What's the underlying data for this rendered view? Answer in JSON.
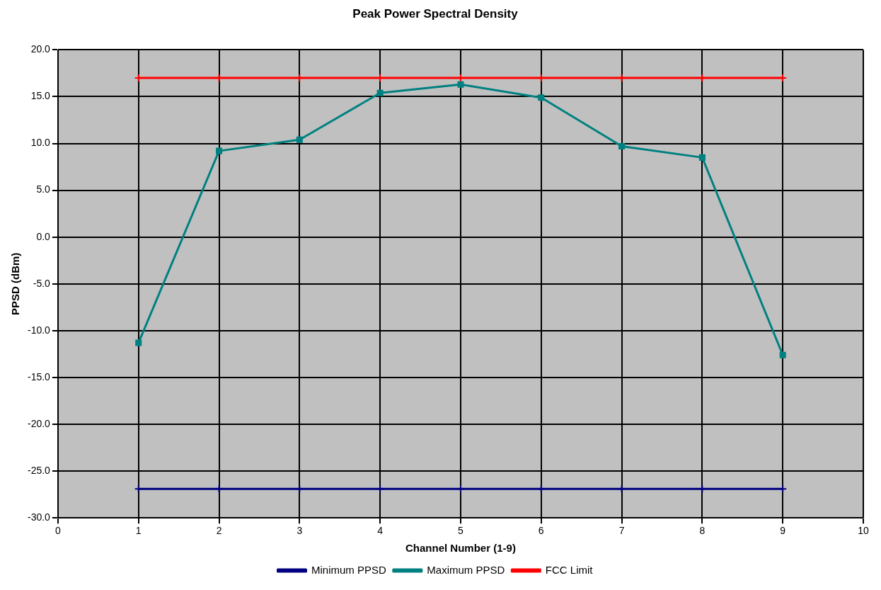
{
  "chart_data": {
    "type": "line",
    "title": "Peak Power Spectral Density",
    "xlabel": "Channel Number (1-9)",
    "ylabel": "PPSD (dBm)",
    "x": [
      1,
      2,
      3,
      4,
      5,
      6,
      7,
      8,
      9
    ],
    "series": [
      {
        "name": "Minimum PPSD",
        "color": "#000080",
        "marker": "cross",
        "values": [
          -26.9,
          -26.9,
          -26.9,
          -26.9,
          -26.9,
          -26.9,
          -26.9,
          -26.9,
          -26.9
        ]
      },
      {
        "name": "Maximum PPSD",
        "color": "#008080",
        "marker": "square",
        "values": [
          -11.3,
          9.2,
          10.4,
          15.4,
          16.3,
          14.9,
          9.7,
          8.5,
          -12.6
        ]
      },
      {
        "name": "FCC Limit",
        "color": "#ff0000",
        "marker": "cross",
        "values": [
          17.0,
          17.0,
          17.0,
          17.0,
          17.0,
          17.0,
          17.0,
          17.0,
          17.0
        ]
      }
    ],
    "xlim": [
      0,
      10
    ],
    "xticks": [
      0,
      1,
      2,
      3,
      4,
      5,
      6,
      7,
      8,
      9,
      10
    ],
    "ylim": [
      -30,
      20
    ],
    "yticks": [
      {
        "value": -30,
        "label": "-30.0"
      },
      {
        "value": -25,
        "label": "-25.0"
      },
      {
        "value": -20,
        "label": "-20.0"
      },
      {
        "value": -15,
        "label": "-15.0"
      },
      {
        "value": -10,
        "label": "-10.0"
      },
      {
        "value": -5,
        "label": "-5.0"
      },
      {
        "value": 0,
        "label": "0.0"
      },
      {
        "value": 5,
        "label": "5.0"
      },
      {
        "value": 10,
        "label": "10.0"
      },
      {
        "value": 15,
        "label": "15.0"
      },
      {
        "value": 20,
        "label": "20.0"
      }
    ],
    "grid": true,
    "legend": "bottom",
    "line_style": "solid"
  }
}
